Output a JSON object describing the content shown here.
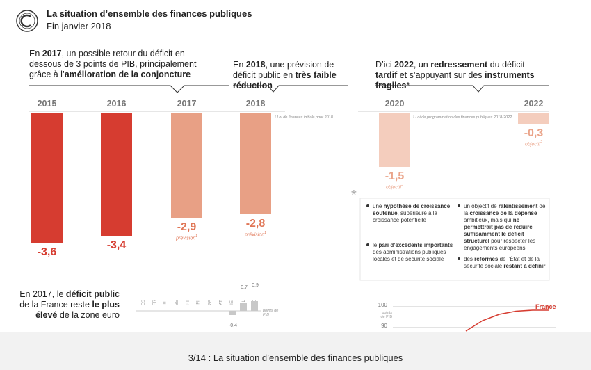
{
  "header": {
    "title": "La situation d’ensemble des finances publiques",
    "subtitle": "Fin janvier 2018"
  },
  "callouts": [
    {
      "runs": [
        {
          "t": "En ",
          "b": false
        },
        {
          "t": "2017",
          "b": true
        },
        {
          "t": ", un possible retour du déficit en dessous de 3 points de PIB, principalement grâce à l’",
          "b": false
        },
        {
          "t": "amélioration de la conjoncture",
          "b": true
        }
      ]
    },
    {
      "runs": [
        {
          "t": "En ",
          "b": false
        },
        {
          "t": "2018",
          "b": true
        },
        {
          "t": ", une prévision de déficit public en ",
          "b": false
        },
        {
          "t": "très faible réduction",
          "b": true
        }
      ]
    },
    {
      "runs": [
        {
          "t": "D’ici ",
          "b": false
        },
        {
          "t": "2022",
          "b": true
        },
        {
          "t": ", un ",
          "b": false
        },
        {
          "t": "redressement",
          "b": true
        },
        {
          "t": " du déficit ",
          "b": false
        },
        {
          "t": "tardif",
          "b": true
        },
        {
          "t": " et s’appuyant sur des ",
          "b": false
        },
        {
          "t": "instruments fragiles",
          "b": true
        },
        {
          "t": "*",
          "b": false
        }
      ]
    }
  ],
  "footnotes": [
    "¹ Loi de finances initiale pour 2018",
    "² Loi de programmation des finances publiques 2018-2022"
  ],
  "assumptions": {
    "marker": "*",
    "items": [
      {
        "runs": [
          {
            "t": "une ",
            "b": false
          },
          {
            "t": "hypothèse de croissance soutenue",
            "b": true
          },
          {
            "t": ", supérieure à la croissance potentielle",
            "b": false
          }
        ]
      },
      {
        "runs": [
          {
            "t": "le ",
            "b": false
          },
          {
            "t": "pari d’excédents importants",
            "b": true
          },
          {
            "t": " des administrations publiques locales et de sécurité sociale",
            "b": false
          }
        ]
      },
      {
        "runs": [
          {
            "t": "un objectif de ",
            "b": false
          },
          {
            "t": "ralentissement",
            "b": true
          },
          {
            "t": " de la ",
            "b": false
          },
          {
            "t": "croissance de la dépense",
            "b": true
          },
          {
            "t": " ambitieux, mais qui ",
            "b": false
          },
          {
            "t": "ne permettrait pas de réduire suffisamment le déficit structurel",
            "b": true
          },
          {
            "t": " pour respecter les engagements européens",
            "b": false
          }
        ]
      },
      {
        "runs": [
          {
            "t": "des ",
            "b": false
          },
          {
            "t": "réformes",
            "b": true
          },
          {
            "t": " de l’État et de la sécurité sociale ",
            "b": false
          },
          {
            "t": "restant à définir",
            "b": true
          }
        ]
      }
    ]
  },
  "comparison": {
    "runs": [
      {
        "t": "En 2017, le ",
        "b": false
      },
      {
        "t": "déficit public",
        "b": true
      },
      {
        "t": " de la France reste ",
        "b": false
      },
      {
        "t": "le plus élevé",
        "b": true
      },
      {
        "t": " de la zone euro",
        "b": false
      }
    ]
  },
  "chart_data": [
    {
      "type": "bar",
      "categories": [
        "2015",
        "2016",
        "2017",
        "2018",
        "2020",
        "2022"
      ],
      "values": [
        -3.6,
        -3.4,
        -2.9,
        -2.8,
        -1.5,
        -0.3
      ],
      "value_labels": [
        "-3,6",
        "-3,4",
        "-2,9",
        "-2,8",
        "-1,5",
        "-0,3"
      ],
      "notes": [
        null,
        null,
        "prévision",
        "prévision",
        "objectif",
        "objectif"
      ],
      "note_refs": [
        null,
        null,
        "1",
        "1",
        "2",
        "2"
      ],
      "colors": [
        "#d63c30",
        "#d63c30",
        "#e8a085",
        "#e8a085",
        "#f4cdbd",
        "#f4cdbd"
      ]
    },
    {
      "type": "bar",
      "categories": [
        "ES",
        "FR",
        "IT",
        "BE",
        "PT",
        "FI",
        "ZE",
        "AT",
        "IE",
        "NL",
        "DE"
      ],
      "values": [
        null,
        null,
        null,
        null,
        null,
        null,
        null,
        null,
        -0.4,
        0.7,
        0.9
      ],
      "value_labels": [
        null,
        null,
        null,
        null,
        null,
        null,
        null,
        null,
        "-0,4",
        "0,7",
        "0,9"
      ],
      "unit": "points de PIB",
      "color": "#c8c8c8"
    },
    {
      "type": "line",
      "categories": [
        null,
        null,
        null,
        null,
        null,
        null
      ],
      "series": [
        {
          "name": "France",
          "color": "#d63c30",
          "values": [
            88,
            93,
            96,
            97.5,
            98,
            98
          ]
        }
      ],
      "ylim": [
        88,
        100
      ],
      "yticks": [
        100,
        90
      ],
      "ylabel": "points de PIB",
      "grid": true
    }
  ],
  "caption": "3/14 : La situation d’ensemble des finances publiques"
}
